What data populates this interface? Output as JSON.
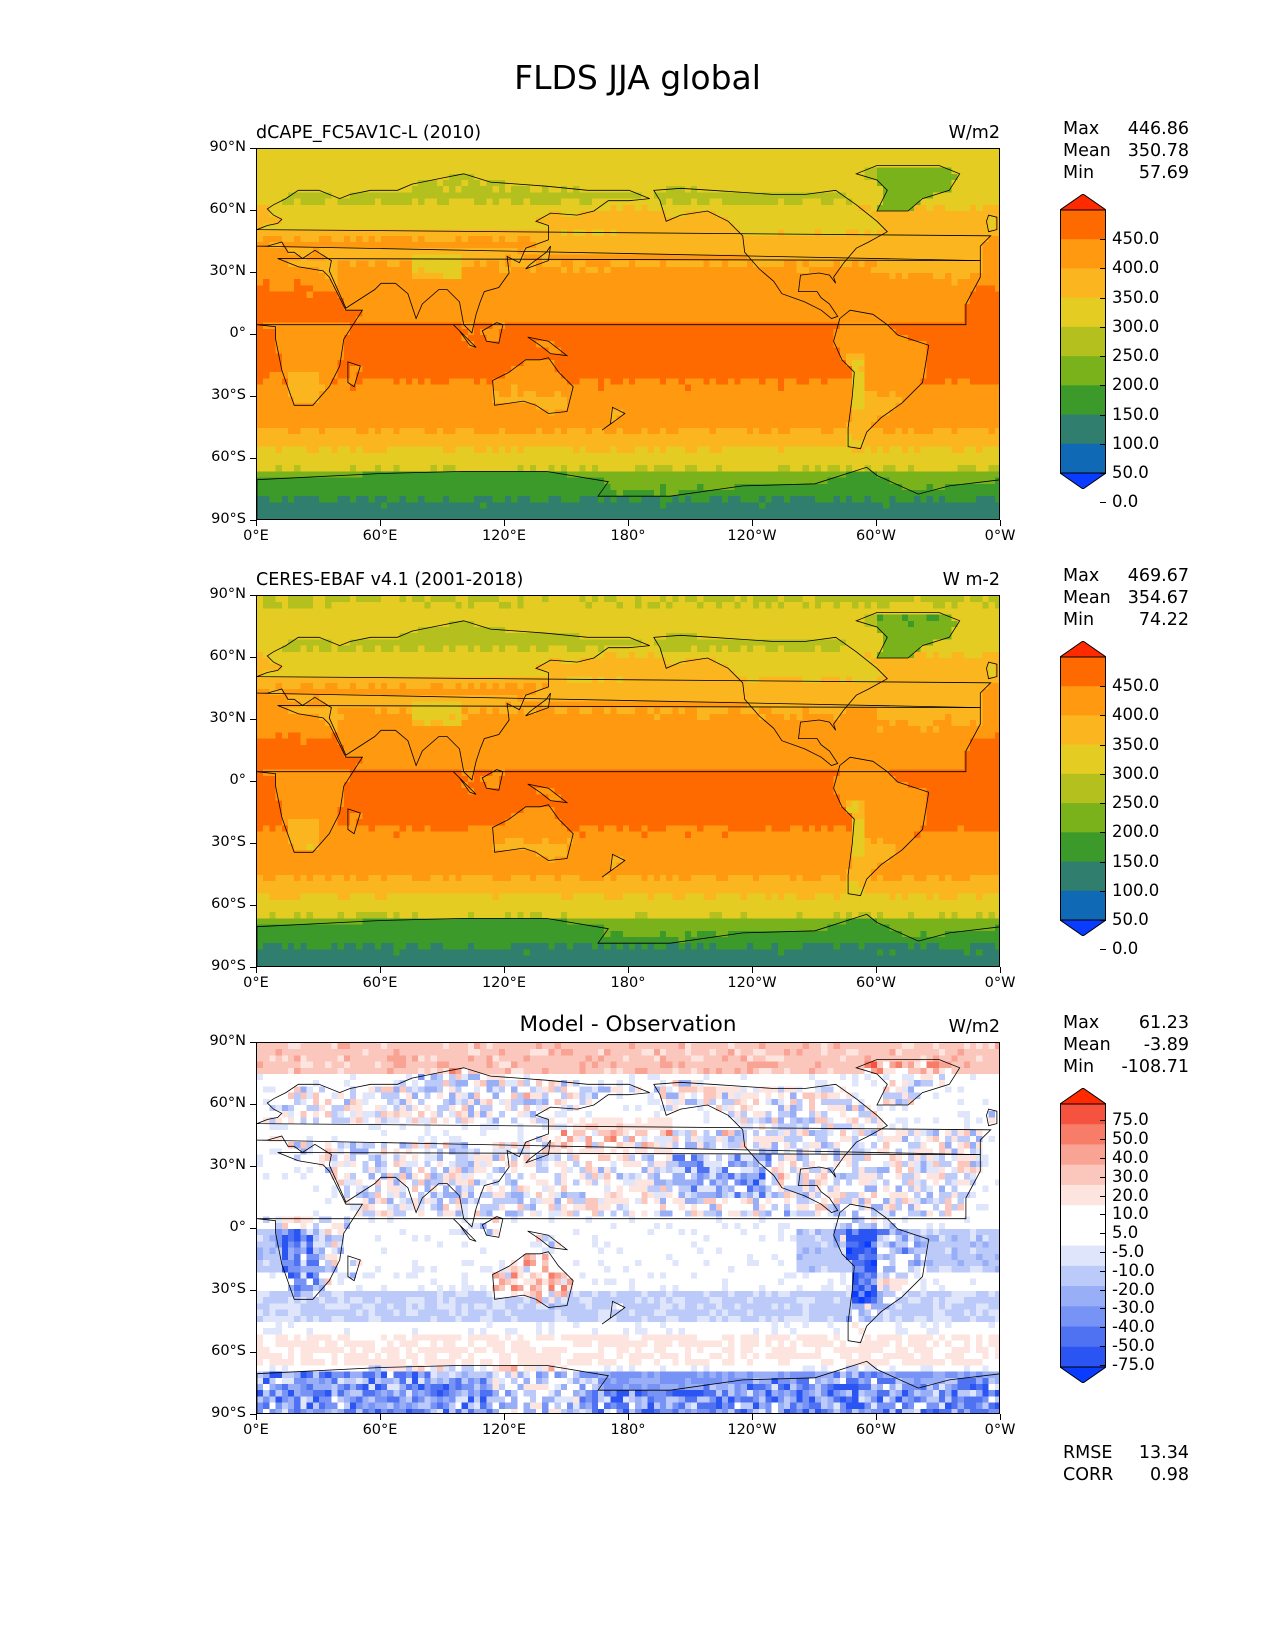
{
  "figure": {
    "title": "FLDS JJA global"
  },
  "axes": {
    "lat_ticks": [
      "90°N",
      "60°N",
      "30°N",
      "0°",
      "30°S",
      "60°S",
      "90°S"
    ],
    "lon_ticks": [
      "0°E",
      "60°E",
      "120°E",
      "180°",
      "120°W",
      "60°W",
      "0°W"
    ]
  },
  "panels": [
    {
      "label": "dCAPE_FC5AV1C-L (2010)",
      "units": "W/m2",
      "stats": [
        {
          "name": "Max",
          "value": "446.86"
        },
        {
          "name": "Mean",
          "value": "350.78"
        },
        {
          "name": "Min",
          "value": "57.69"
        }
      ],
      "colorbar_labels": [
        "450.0",
        "400.0",
        "350.0",
        "300.0",
        "250.0",
        "200.0",
        "150.0",
        "100.0",
        "50.0",
        "0.0"
      ]
    },
    {
      "label": "CERES-EBAF v4.1 (2001-2018)",
      "units": "W m-2",
      "stats": [
        {
          "name": "Max",
          "value": "469.67"
        },
        {
          "name": "Mean",
          "value": "354.67"
        },
        {
          "name": "Min",
          "value": "74.22"
        }
      ],
      "colorbar_labels": [
        "450.0",
        "400.0",
        "350.0",
        "300.0",
        "250.0",
        "200.0",
        "150.0",
        "100.0",
        "50.0",
        "0.0"
      ]
    },
    {
      "label": "Model - Observation",
      "units": "W/m2",
      "stats": [
        {
          "name": "Max",
          "value": "61.23"
        },
        {
          "name": "Mean",
          "value": "-3.89"
        },
        {
          "name": "Min",
          "value": "-108.71"
        }
      ],
      "colorbar_labels": [
        "75.0",
        "50.0",
        "40.0",
        "30.0",
        "20.0",
        "10.0",
        "5.0",
        "-5.0",
        "-10.0",
        "-20.0",
        "-30.0",
        "-40.0",
        "-50.0",
        "-75.0"
      ],
      "footer": [
        {
          "name": "RMSE",
          "value": "13.34"
        },
        {
          "name": "CORR",
          "value": "0.98"
        }
      ]
    }
  ],
  "colors": {
    "abs_colormap": [
      "#ff2a00",
      "#ff6a00",
      "#ff9a10",
      "#fbb61f",
      "#e4cc22",
      "#b4c01e",
      "#7ab21c",
      "#3c9a2a",
      "#2f7e6e",
      "#0f69b4",
      "#0a3cff"
    ],
    "diff_colormap": [
      "#ff2a00",
      "#f5523f",
      "#f77d68",
      "#f8a393",
      "#fbc6bc",
      "#fde4df",
      "#ffffff",
      "#ffffff",
      "#dfe6fb",
      "#bccafa",
      "#98aef7",
      "#7693f5",
      "#4f72f2",
      "#2a55f3",
      "#0a3cff"
    ]
  }
}
